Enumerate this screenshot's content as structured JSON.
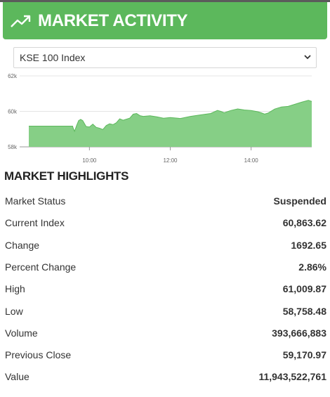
{
  "header": {
    "title": "MARKET ACTIVITY",
    "icon": "trending-up-icon",
    "accent_color": "#5cb85c"
  },
  "index_select": {
    "selected": "KSE 100 Index",
    "icon": "chevron-down-icon"
  },
  "chart_data": {
    "type": "area",
    "title": "",
    "xlabel": "",
    "ylabel": "",
    "xlim": [
      "08:30",
      "15:30"
    ],
    "ylim": [
      58000,
      62000
    ],
    "yticks": [
      "58k",
      "60k",
      "62k"
    ],
    "xticks": [
      "10:00",
      "12:00",
      "14:00"
    ],
    "fill_color": "#86cf86",
    "line_color": "#5cb85c",
    "grid": "horizontal",
    "series": [
      {
        "x": [
          "08:30",
          "09:35",
          "09:36",
          "09:38",
          "09:41",
          "09:44",
          "09:47",
          "09:50",
          "09:55",
          "10:00",
          "10:05",
          "10:10",
          "10:15",
          "10:20",
          "10:25",
          "10:30",
          "10:35",
          "10:40",
          "10:45",
          "10:50",
          "11:00",
          "11:05",
          "11:10",
          "11:15",
          "11:20",
          "11:30",
          "11:40",
          "11:50",
          "12:00",
          "12:15",
          "12:30",
          "12:45",
          "13:00",
          "13:10",
          "13:15",
          "13:20",
          "13:30",
          "13:40",
          "13:50",
          "14:00",
          "14:10",
          "14:15",
          "14:20",
          "14:25",
          "14:35",
          "14:45",
          "14:55",
          "15:05",
          "15:15",
          "15:25",
          "15:30"
        ],
        "y": [
          59170,
          59170,
          59050,
          58880,
          59200,
          59480,
          59550,
          59480,
          59150,
          59120,
          59280,
          59100,
          59050,
          58980,
          59200,
          59300,
          59250,
          59360,
          59580,
          59500,
          59620,
          59840,
          59880,
          59760,
          59720,
          59750,
          59690,
          59610,
          59650,
          59600,
          59720,
          59800,
          59880,
          60050,
          60000,
          59920,
          60050,
          60140,
          60080,
          60050,
          59980,
          59920,
          59850,
          59900,
          60130,
          60250,
          60280,
          60400,
          60520,
          60620,
          60560
        ]
      }
    ]
  },
  "highlights": {
    "title": "MARKET HIGHLIGHTS",
    "rows": [
      {
        "label": "Market Status",
        "value": "Suspended"
      },
      {
        "label": "Current Index",
        "value": "60,863.62"
      },
      {
        "label": "Change",
        "value": "1692.65"
      },
      {
        "label": "Percent Change",
        "value": "2.86%"
      },
      {
        "label": "High",
        "value": "61,009.87"
      },
      {
        "label": "Low",
        "value": "58,758.48"
      },
      {
        "label": "Volume",
        "value": "393,666,883"
      },
      {
        "label": "Previous Close",
        "value": "59,170.97"
      },
      {
        "label": "Value",
        "value": "11,943,522,761"
      }
    ]
  }
}
